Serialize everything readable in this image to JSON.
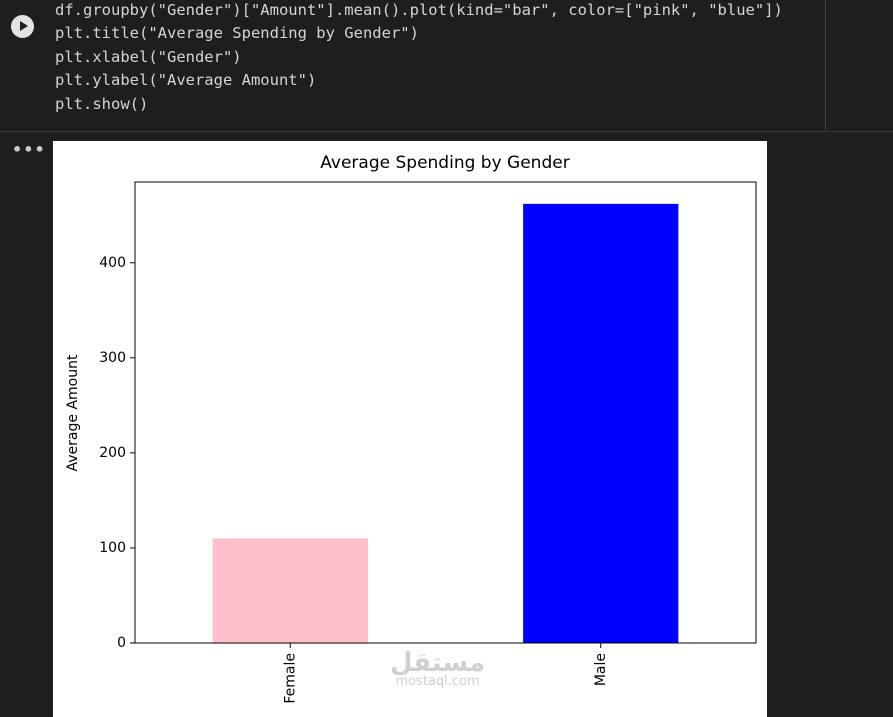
{
  "code": {
    "lines": [
      "df.groupby(\"Gender\")[\"Amount\"].mean().plot(kind=\"bar\", color=[\"pink\", \"blue\"])",
      "plt.title(\"Average Spending by Gender\")",
      "plt.xlabel(\"Gender\")",
      "plt.ylabel(\"Average Amount\")",
      "plt.show()"
    ]
  },
  "chart_data": {
    "type": "bar",
    "title": "Average Spending by Gender",
    "y_label": "Average Amount",
    "categories": [
      "Female",
      "Male"
    ],
    "values": [
      110,
      462
    ],
    "colors": [
      "#ffc0cb",
      "#0000ff"
    ],
    "ylim": [
      0,
      485
    ],
    "yticks": [
      0,
      100,
      200,
      300,
      400
    ],
    "grid": false
  },
  "watermark": {
    "arabic": "مستقل",
    "latin": "mostaql.com"
  }
}
